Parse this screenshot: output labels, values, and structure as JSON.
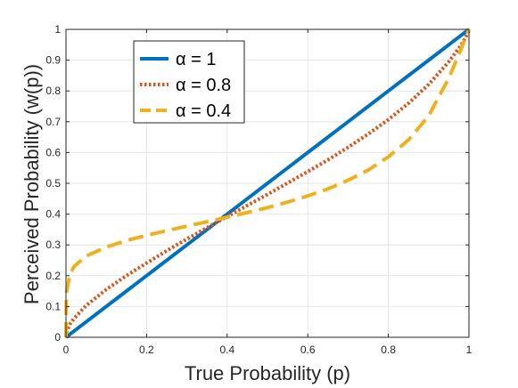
{
  "chart_data": {
    "type": "line",
    "title": "",
    "xlabel": "True Probability (p)",
    "ylabel": "Perceived Probability (w(p))",
    "xlim": [
      0,
      1
    ],
    "ylim": [
      0,
      1
    ],
    "xticks": [
      0,
      0.2,
      0.4,
      0.6,
      0.8,
      1
    ],
    "xtick_labels": [
      "0",
      "0.2",
      "0.4",
      "0.6",
      "0.8",
      "1"
    ],
    "yticks": [
      0,
      0.1,
      0.2,
      0.3,
      0.4,
      0.5,
      0.6,
      0.7,
      0.8,
      0.9,
      1
    ],
    "ytick_labels": [
      "0",
      "0.1",
      "0.2",
      "0.3",
      "0.4",
      "0.5",
      "0.6",
      "0.7",
      "0.8",
      "0.9",
      "1"
    ],
    "grid": true,
    "legend_position": "top-left",
    "x": [
      0,
      0.001,
      0.01,
      0.02,
      0.05,
      0.1,
      0.15,
      0.2,
      0.25,
      0.3,
      0.35,
      0.4,
      0.45,
      0.5,
      0.55,
      0.6,
      0.65,
      0.7,
      0.75,
      0.8,
      0.85,
      0.9,
      0.95,
      0.98,
      0.99,
      0.999,
      1
    ],
    "series": [
      {
        "name": "α = 1",
        "color": "#0072BD",
        "style": "solid",
        "values": [
          0,
          0.001,
          0.01,
          0.02,
          0.05,
          0.1,
          0.15,
          0.2,
          0.25,
          0.3,
          0.35,
          0.4,
          0.45,
          0.5,
          0.55,
          0.6,
          0.65,
          0.7,
          0.75,
          0.8,
          0.85,
          0.9,
          0.95,
          0.98,
          0.99,
          0.999,
          1
        ]
      },
      {
        "name": "α = 0.8",
        "color": "#D95319",
        "style": "dotted",
        "values": [
          0,
          0.016,
          0.043,
          0.061,
          0.103,
          0.155,
          0.2,
          0.241,
          0.281,
          0.319,
          0.356,
          0.392,
          0.428,
          0.464,
          0.501,
          0.538,
          0.576,
          0.617,
          0.66,
          0.707,
          0.76,
          0.821,
          0.895,
          0.948,
          0.97,
          0.993,
          1
        ]
      },
      {
        "name": "α = 0.4",
        "color": "#EDB120",
        "style": "dashed",
        "values": [
          0,
          0.144,
          0.205,
          0.23,
          0.264,
          0.293,
          0.314,
          0.331,
          0.346,
          0.361,
          0.375,
          0.39,
          0.405,
          0.421,
          0.439,
          0.459,
          0.482,
          0.51,
          0.543,
          0.586,
          0.641,
          0.719,
          0.842,
          0.934,
          0.969,
          0.997,
          1
        ]
      }
    ]
  }
}
